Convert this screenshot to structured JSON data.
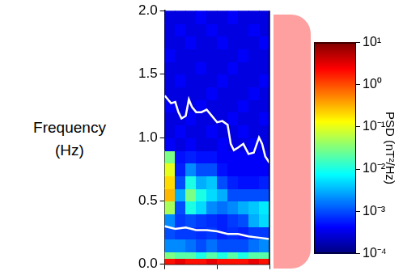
{
  "chart_data": {
    "type": "heatmap",
    "y_label": "Frequency (Hz)",
    "xlim": [
      0,
      10
    ],
    "xticks": [
      0,
      5,
      10
    ],
    "ylim": [
      0,
      2
    ],
    "yticks": [
      {
        "value": 0,
        "label": "0.0"
      },
      0.5,
      {
        "value": 1,
        "label": "1.0"
      },
      1.5,
      {
        "value": 2,
        "label": "2.0"
      }
    ],
    "tick_labels": "y",
    "grid": false,
    "x_bins": [
      0,
      1,
      2,
      3,
      4,
      5,
      6,
      7,
      8,
      9,
      10
    ],
    "y_bins": [
      0,
      0.05,
      0.1,
      0.2,
      0.3,
      0.4,
      0.5,
      0.6,
      0.7,
      0.8,
      0.9,
      1.0,
      1.1,
      1.2,
      1.3,
      1.4,
      1.5,
      1.6,
      1.7,
      1.8,
      1.9,
      2.0
    ],
    "cells": [
      [
        2,
        3,
        2,
        2,
        3,
        2,
        2,
        2,
        3,
        2
      ],
      [
        0.03,
        0.02,
        0.02,
        0.01,
        0.02,
        0.01,
        0.02,
        0.01,
        0.02,
        0.02
      ],
      [
        0.002,
        0.002,
        0.0015,
        0.001,
        0.0015,
        0.001,
        0.001,
        0.001,
        0.0015,
        0.002
      ],
      [
        0.001,
        0.0008,
        0.0008,
        0.0007,
        0.0008,
        0.0006,
        0.0007,
        0.0006,
        0.0008,
        0.0008
      ],
      [
        0.002,
        0.0008,
        0.001,
        0.0008,
        0.0007,
        0.0006,
        0.0008,
        0.001,
        0.003,
        0.005
      ],
      [
        0.05,
        0.001,
        0.01,
        0.005,
        0.002,
        0.0015,
        0.002,
        0.003,
        0.004,
        0.006
      ],
      [
        0.3,
        0.003,
        0.03,
        0.01,
        0.005,
        0.003,
        0.001,
        0.001,
        0.001,
        0.001
      ],
      [
        0.2,
        0.001,
        0.01,
        0.003,
        0.004,
        0.001,
        0.0006,
        0.0005,
        0.0005,
        0.0006
      ],
      [
        0.1,
        0.0006,
        0.002,
        0.001,
        0.001,
        0.0005,
        0.0004,
        0.0004,
        0.0004,
        0.0004
      ],
      [
        0.03,
        0.0005,
        0.0006,
        0.0005,
        0.0005,
        0.0004,
        0.0004,
        0.0004,
        0.0004,
        0.0004
      ],
      [
        0.0004,
        0.0003,
        0.0004,
        0.0003,
        0.0003,
        0.0004,
        0.0003,
        0.0003,
        0.0004,
        0.0003
      ],
      [
        0.0003,
        0.0004,
        0.0003,
        0.0003,
        0.0004,
        0.0003,
        0.0003,
        0.0004,
        0.0003,
        0.0003
      ],
      [
        0.0003,
        0.0003,
        0.0004,
        0.0003,
        0.0003,
        0.0003,
        0.0004,
        0.0003,
        0.0003,
        0.0004
      ],
      [
        0.0004,
        0.0003,
        0.0003,
        0.0004,
        0.0003,
        0.0003,
        0.0003,
        0.0004,
        0.0003,
        0.0003
      ],
      [
        0.0003,
        0.0003,
        0.0003,
        0.0003,
        0.0004,
        0.0003,
        0.0003,
        0.0003,
        0.0004,
        0.0003
      ],
      [
        0.0003,
        0.0004,
        0.0003,
        0.0003,
        0.0003,
        0.0004,
        0.0003,
        0.0003,
        0.0003,
        0.0004
      ],
      [
        0.0003,
        0.0003,
        0.0003,
        0.0004,
        0.0003,
        0.0003,
        0.0004,
        0.0003,
        0.0003,
        0.0003
      ],
      [
        0.0004,
        0.0003,
        0.0003,
        0.0003,
        0.0003,
        0.0003,
        0.0003,
        0.0004,
        0.0003,
        0.0003
      ],
      [
        0.0003,
        0.0003,
        0.0004,
        0.0003,
        0.0003,
        0.0004,
        0.0003,
        0.0003,
        0.0003,
        0.0004
      ],
      [
        0.0003,
        0.0004,
        0.0003,
        0.0003,
        0.0004,
        0.0003,
        0.0003,
        0.0003,
        0.0004,
        0.0003
      ],
      [
        0.0003,
        0.0003,
        0.0003,
        0.0004,
        0.0003,
        0.0003,
        0.0004,
        0.0003,
        0.0003,
        0.0003
      ]
    ],
    "colorbar": {
      "title": "PSD (nT²/Hz)",
      "log": true,
      "lim": [
        0.0001,
        10
      ],
      "ticks": [
        {
          "value": 0.0001,
          "label": "10⁻⁴"
        },
        {
          "value": 0.001,
          "label": "10⁻³"
        },
        {
          "value": 0.01,
          "label": "10⁻²"
        },
        {
          "value": 0.1,
          "label": "10⁻¹"
        },
        {
          "value": 1,
          "label": "10⁰"
        },
        {
          "value": 10,
          "label": "10¹"
        }
      ]
    },
    "series": [
      {
        "type": "line",
        "color": "#ffffff",
        "x": [
          0,
          0.3,
          0.6,
          1.0,
          1.3,
          1.6,
          2.0,
          2.3,
          2.6,
          3.0,
          3.5,
          4.0,
          4.5,
          5.0,
          5.5,
          6.0,
          6.3,
          6.6,
          7.0,
          7.5,
          8.0,
          8.5,
          9.0,
          9.3,
          9.6,
          10
        ],
        "values": [
          1.33,
          1.3,
          1.27,
          1.28,
          1.2,
          1.15,
          1.17,
          1.3,
          1.24,
          1.2,
          1.2,
          1.22,
          1.17,
          1.12,
          1.13,
          1.1,
          0.95,
          0.9,
          0.92,
          0.95,
          0.87,
          0.88,
          1.0,
          0.95,
          0.85,
          0.8
        ]
      },
      {
        "type": "line",
        "color": "#ffffff",
        "x": [
          0,
          1,
          2,
          3,
          4,
          5,
          6,
          7,
          8,
          9,
          10
        ],
        "values": [
          0.3,
          0.28,
          0.29,
          0.27,
          0.27,
          0.26,
          0.24,
          0.24,
          0.22,
          0.21,
          0.2
        ]
      }
    ]
  }
}
